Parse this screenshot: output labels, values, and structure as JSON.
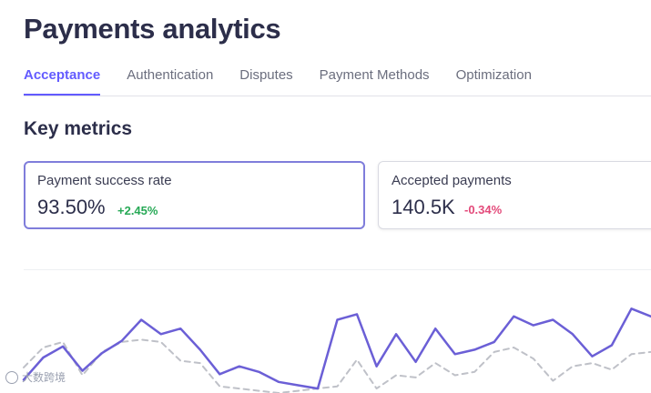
{
  "header": {
    "title": "Payments analytics"
  },
  "tabs": [
    {
      "label": "Acceptance",
      "active": true
    },
    {
      "label": "Authentication",
      "active": false
    },
    {
      "label": "Disputes",
      "active": false
    },
    {
      "label": "Payment Methods",
      "active": false
    },
    {
      "label": "Optimization",
      "active": false
    }
  ],
  "key_metrics": {
    "title": "Key metrics",
    "cards": [
      {
        "label": "Payment success rate",
        "value": "93.50%",
        "delta": "+2.45%",
        "trend": "up",
        "selected": true
      },
      {
        "label": "Accepted payments",
        "value": "140.5K",
        "delta": "-0.34%",
        "trend": "down",
        "selected": false
      }
    ]
  },
  "colors": {
    "accent": "#635bff",
    "selected_border": "#7f7ddb",
    "delta_up": "#27a956",
    "delta_down": "#e34a7a",
    "series_current": "#6b5fd6",
    "series_previous": "#bfc1c8"
  },
  "chart_data": {
    "type": "line",
    "grid": false,
    "legend": "none",
    "x": [
      0,
      1,
      2,
      3,
      4,
      5,
      6,
      7,
      8,
      9,
      10,
      11,
      12,
      13,
      14,
      15,
      16,
      17,
      18,
      19,
      20,
      21,
      22,
      23,
      24,
      25,
      26,
      27,
      28,
      29,
      30,
      31,
      32
    ],
    "series": [
      {
        "style": "solid",
        "values": [
          0.12,
          0.32,
          0.42,
          0.2,
          0.36,
          0.47,
          0.66,
          0.53,
          0.58,
          0.39,
          0.17,
          0.24,
          0.19,
          0.1,
          0.07,
          0.04,
          0.66,
          0.71,
          0.24,
          0.53,
          0.28,
          0.58,
          0.35,
          0.39,
          0.46,
          0.69,
          0.61,
          0.66,
          0.53,
          0.33,
          0.43,
          0.76,
          0.69
        ]
      },
      {
        "style": "dashed",
        "values": [
          0.23,
          0.41,
          0.46,
          0.16,
          0.37,
          0.46,
          0.48,
          0.46,
          0.29,
          0.27,
          0.06,
          0.04,
          0.02,
          0.0,
          0.02,
          0.04,
          0.06,
          0.3,
          0.04,
          0.16,
          0.14,
          0.27,
          0.16,
          0.19,
          0.37,
          0.41,
          0.31,
          0.11,
          0.24,
          0.27,
          0.21,
          0.35,
          0.37
        ]
      }
    ]
  },
  "watermark": {
    "text": "大数跨境"
  }
}
